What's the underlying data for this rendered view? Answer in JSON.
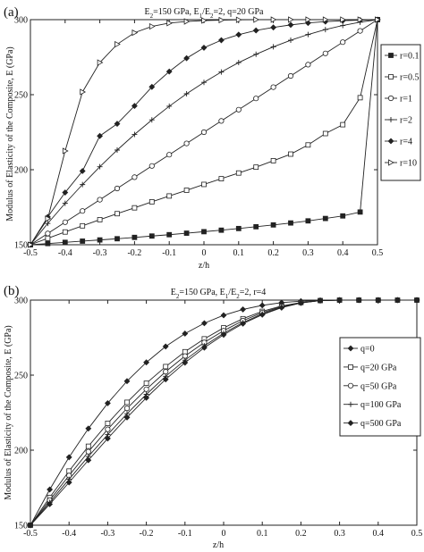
{
  "chart_data": [
    {
      "panel_label": "(a)",
      "type": "line",
      "title": "E2=150 GPa, E1/E2=2, q=20 GPa",
      "title_parts": {
        "a": "E",
        "a_sub": "2",
        "b": "=150 GPa, E",
        "b_sub": "1",
        "c": "/E",
        "c_sub": "2",
        "d": "=2, q=20 GPa"
      },
      "xlabel": "z/h",
      "ylabel": "Modulus of Elasticity of the Composite, E (GPa)",
      "xlim": [
        -0.5,
        0.5
      ],
      "ylim": [
        150,
        300
      ],
      "xticks": [
        -0.5,
        -0.4,
        -0.3,
        -0.2,
        -0.1,
        0,
        0.1,
        0.2,
        0.3,
        0.4,
        0.5
      ],
      "xtick_labels": [
        "-0.5",
        "-0.4",
        "-0.3",
        "-0.2",
        "-0.1",
        "0",
        "0.1",
        "0.2",
        "0.3",
        "0.4",
        "0.5"
      ],
      "yticks": [
        150,
        200,
        250,
        300
      ],
      "ytick_labels": [
        "150",
        "200",
        "250",
        "300"
      ],
      "legend_position": "right",
      "x": [
        -0.5,
        -0.45,
        -0.4,
        -0.35,
        -0.3,
        -0.25,
        -0.2,
        -0.15,
        -0.1,
        -0.05,
        0,
        0.05,
        0.1,
        0.15,
        0.2,
        0.25,
        0.3,
        0.35,
        0.4,
        0.45,
        0.5
      ],
      "series": [
        {
          "name": "r=0.1",
          "marker": "square-filled",
          "values": [
            150,
            150.8,
            151.6,
            152.4,
            153.2,
            154,
            154.9,
            155.8,
            156.7,
            157.7,
            158.7,
            159.7,
            160.8,
            162,
            163.2,
            164.5,
            165.9,
            167.5,
            169.2,
            171.8,
            300
          ]
        },
        {
          "name": "r=0.5",
          "marker": "square-open",
          "values": [
            150,
            154.3,
            158.5,
            162.6,
            166.7,
            170.7,
            174.6,
            178.6,
            182.5,
            186.3,
            190.2,
            194,
            197.8,
            201.7,
            206,
            210.4,
            216.5,
            224.1,
            230,
            248,
            300
          ]
        },
        {
          "name": "r=1",
          "marker": "circle-open",
          "values": [
            150,
            157.5,
            165,
            172.5,
            180,
            187.5,
            195,
            202.5,
            210,
            217.5,
            225,
            232.5,
            240,
            247.5,
            255,
            262.5,
            270,
            277.5,
            285,
            292.5,
            300
          ]
        },
        {
          "name": "r=2",
          "marker": "plus",
          "values": [
            150,
            164.2,
            177.6,
            190.1,
            202,
            213.1,
            223.5,
            233.2,
            242.3,
            250.6,
            258.2,
            265.1,
            271.4,
            276.9,
            281.9,
            286.3,
            290.1,
            293.4,
            296.1,
            298.3,
            300
          ]
        },
        {
          "name": "r=4",
          "marker": "diamond-filled",
          "values": [
            150,
            168.5,
            184.8,
            199.1,
            222.5,
            230.6,
            242.5,
            255.2,
            265.4,
            274.3,
            281.3,
            286.3,
            290,
            292.8,
            294.8,
            296.5,
            297.8,
            298.7,
            299.3,
            299.7,
            300
          ]
        },
        {
          "name": "r=10",
          "marker": "triangle-right",
          "values": [
            150,
            167.4,
            212.5,
            251.8,
            271.4,
            283.6,
            291.3,
            295.5,
            297.7,
            298.8,
            299.4,
            299.7,
            299.9,
            300,
            300,
            300,
            300,
            300,
            300,
            300,
            300
          ]
        }
      ]
    },
    {
      "panel_label": "(b)",
      "type": "line",
      "title": "E2=150 GPa, E1/E2=2, r=4",
      "title_parts": {
        "a": "E",
        "a_sub": "2",
        "b": "=150 GPa, E",
        "b_sub": "1",
        "c": "/E",
        "c_sub": "2",
        "d": "=2, r=4"
      },
      "xlabel": "z/h",
      "ylabel": "Modulus of Elasticity of the Composite, E (GPa)",
      "xlim": [
        -0.5,
        0.5
      ],
      "ylim": [
        150,
        300
      ],
      "xticks": [
        -0.5,
        -0.4,
        -0.3,
        -0.2,
        -0.1,
        0,
        0.1,
        0.2,
        0.3,
        0.4,
        0.5
      ],
      "xtick_labels": [
        "-0.5",
        "-0.4",
        "-0.3",
        "-0.2",
        "-0.1",
        "0",
        "0.1",
        "0.2",
        "0.3",
        "0.4",
        "0.5"
      ],
      "yticks": [
        150,
        200,
        250,
        300
      ],
      "ytick_labels": [
        "150",
        "200",
        "250",
        "300"
      ],
      "legend_position": "right",
      "x": [
        -0.5,
        -0.45,
        -0.4,
        -0.35,
        -0.3,
        -0.25,
        -0.2,
        -0.15,
        -0.1,
        -0.05,
        0,
        0.05,
        0.1,
        0.15,
        0.2,
        0.25,
        0.3,
        0.35,
        0.4,
        0.45,
        0.5
      ],
      "series": [
        {
          "name": "q=0",
          "marker": "diamond-filled",
          "values": [
            150,
            173.8,
            195.3,
            214.4,
            231.3,
            246,
            258.5,
            269.1,
            277.7,
            284.6,
            289.9,
            293.8,
            296.5,
            298.3,
            299.3,
            299.8,
            300,
            300,
            300,
            300,
            300
          ]
        },
        {
          "name": "q=20 GPa",
          "marker": "square-open",
          "values": [
            150,
            168.5,
            186.1,
            202.6,
            217.9,
            231.9,
            244.6,
            255.7,
            265.6,
            274.2,
            281.5,
            287.6,
            292.5,
            296.1,
            298.4,
            299.7,
            300,
            300,
            300,
            300,
            300
          ]
        },
        {
          "name": "q=50 GPa",
          "marker": "circle-open",
          "values": [
            150,
            166.7,
            183.1,
            199,
            213.9,
            227.9,
            240.6,
            252.3,
            262.7,
            271.8,
            279.6,
            286.3,
            291.6,
            295.7,
            298.3,
            299.7,
            300,
            300,
            300,
            300,
            300
          ]
        },
        {
          "name": "q=100 GPa",
          "marker": "plus",
          "values": [
            150,
            165.2,
            180.6,
            195.8,
            210.4,
            224.3,
            237.2,
            249.2,
            260,
            269.6,
            277.9,
            285,
            290.8,
            295.3,
            298.2,
            299.7,
            300,
            300,
            300,
            300,
            300
          ]
        },
        {
          "name": "q=500 GPa",
          "marker": "diamond-filled",
          "values": [
            150,
            164,
            178.5,
            193.3,
            207.8,
            221.8,
            234.9,
            247.2,
            258.3,
            268.3,
            276.9,
            284.3,
            290.3,
            295,
            298.1,
            299.7,
            300,
            300,
            300,
            300,
            300
          ]
        }
      ]
    }
  ]
}
